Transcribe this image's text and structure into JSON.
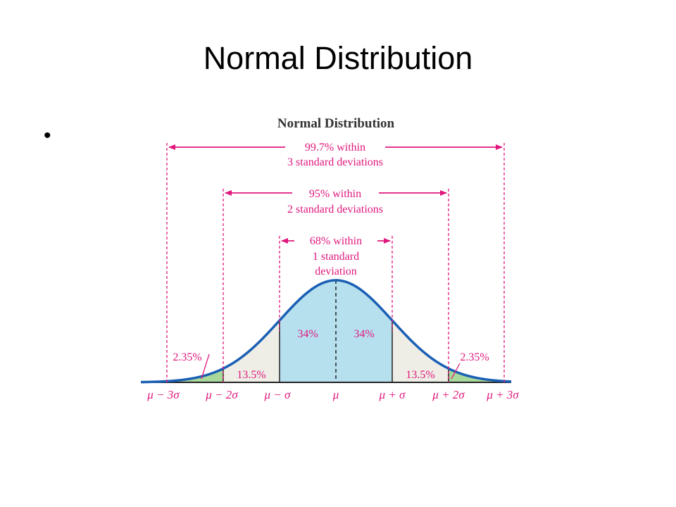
{
  "slide": {
    "title": "Normal Distribution",
    "bullet": "•"
  },
  "figure": {
    "title": "Normal Distribution",
    "band_3sd_line1": "99.7% within",
    "band_3sd_line2": "3 standard deviations",
    "band_2sd_line1": "95% within",
    "band_2sd_line2": "2 standard deviations",
    "band_1sd_line1": "68% within",
    "band_1sd_line2": "1 standard",
    "band_1sd_line3": "deviation",
    "region_labels": {
      "center_left": "34%",
      "center_right": "34%",
      "mid_left": "13.5%",
      "mid_right": "13.5%",
      "tail_left": "2.35%",
      "tail_right": "2.35%"
    },
    "axis_labels": [
      "μ − 3σ",
      "μ − 2σ",
      "μ − σ",
      "μ",
      "μ + σ",
      "μ + 2σ",
      "μ + 3σ"
    ],
    "colors": {
      "magenta": "#e0187c",
      "curve": "#1a5fb4",
      "center_fill": "#b6e0ee",
      "mid_fill": "#eeeee6",
      "tail_fill": "#a8d89a"
    }
  }
}
